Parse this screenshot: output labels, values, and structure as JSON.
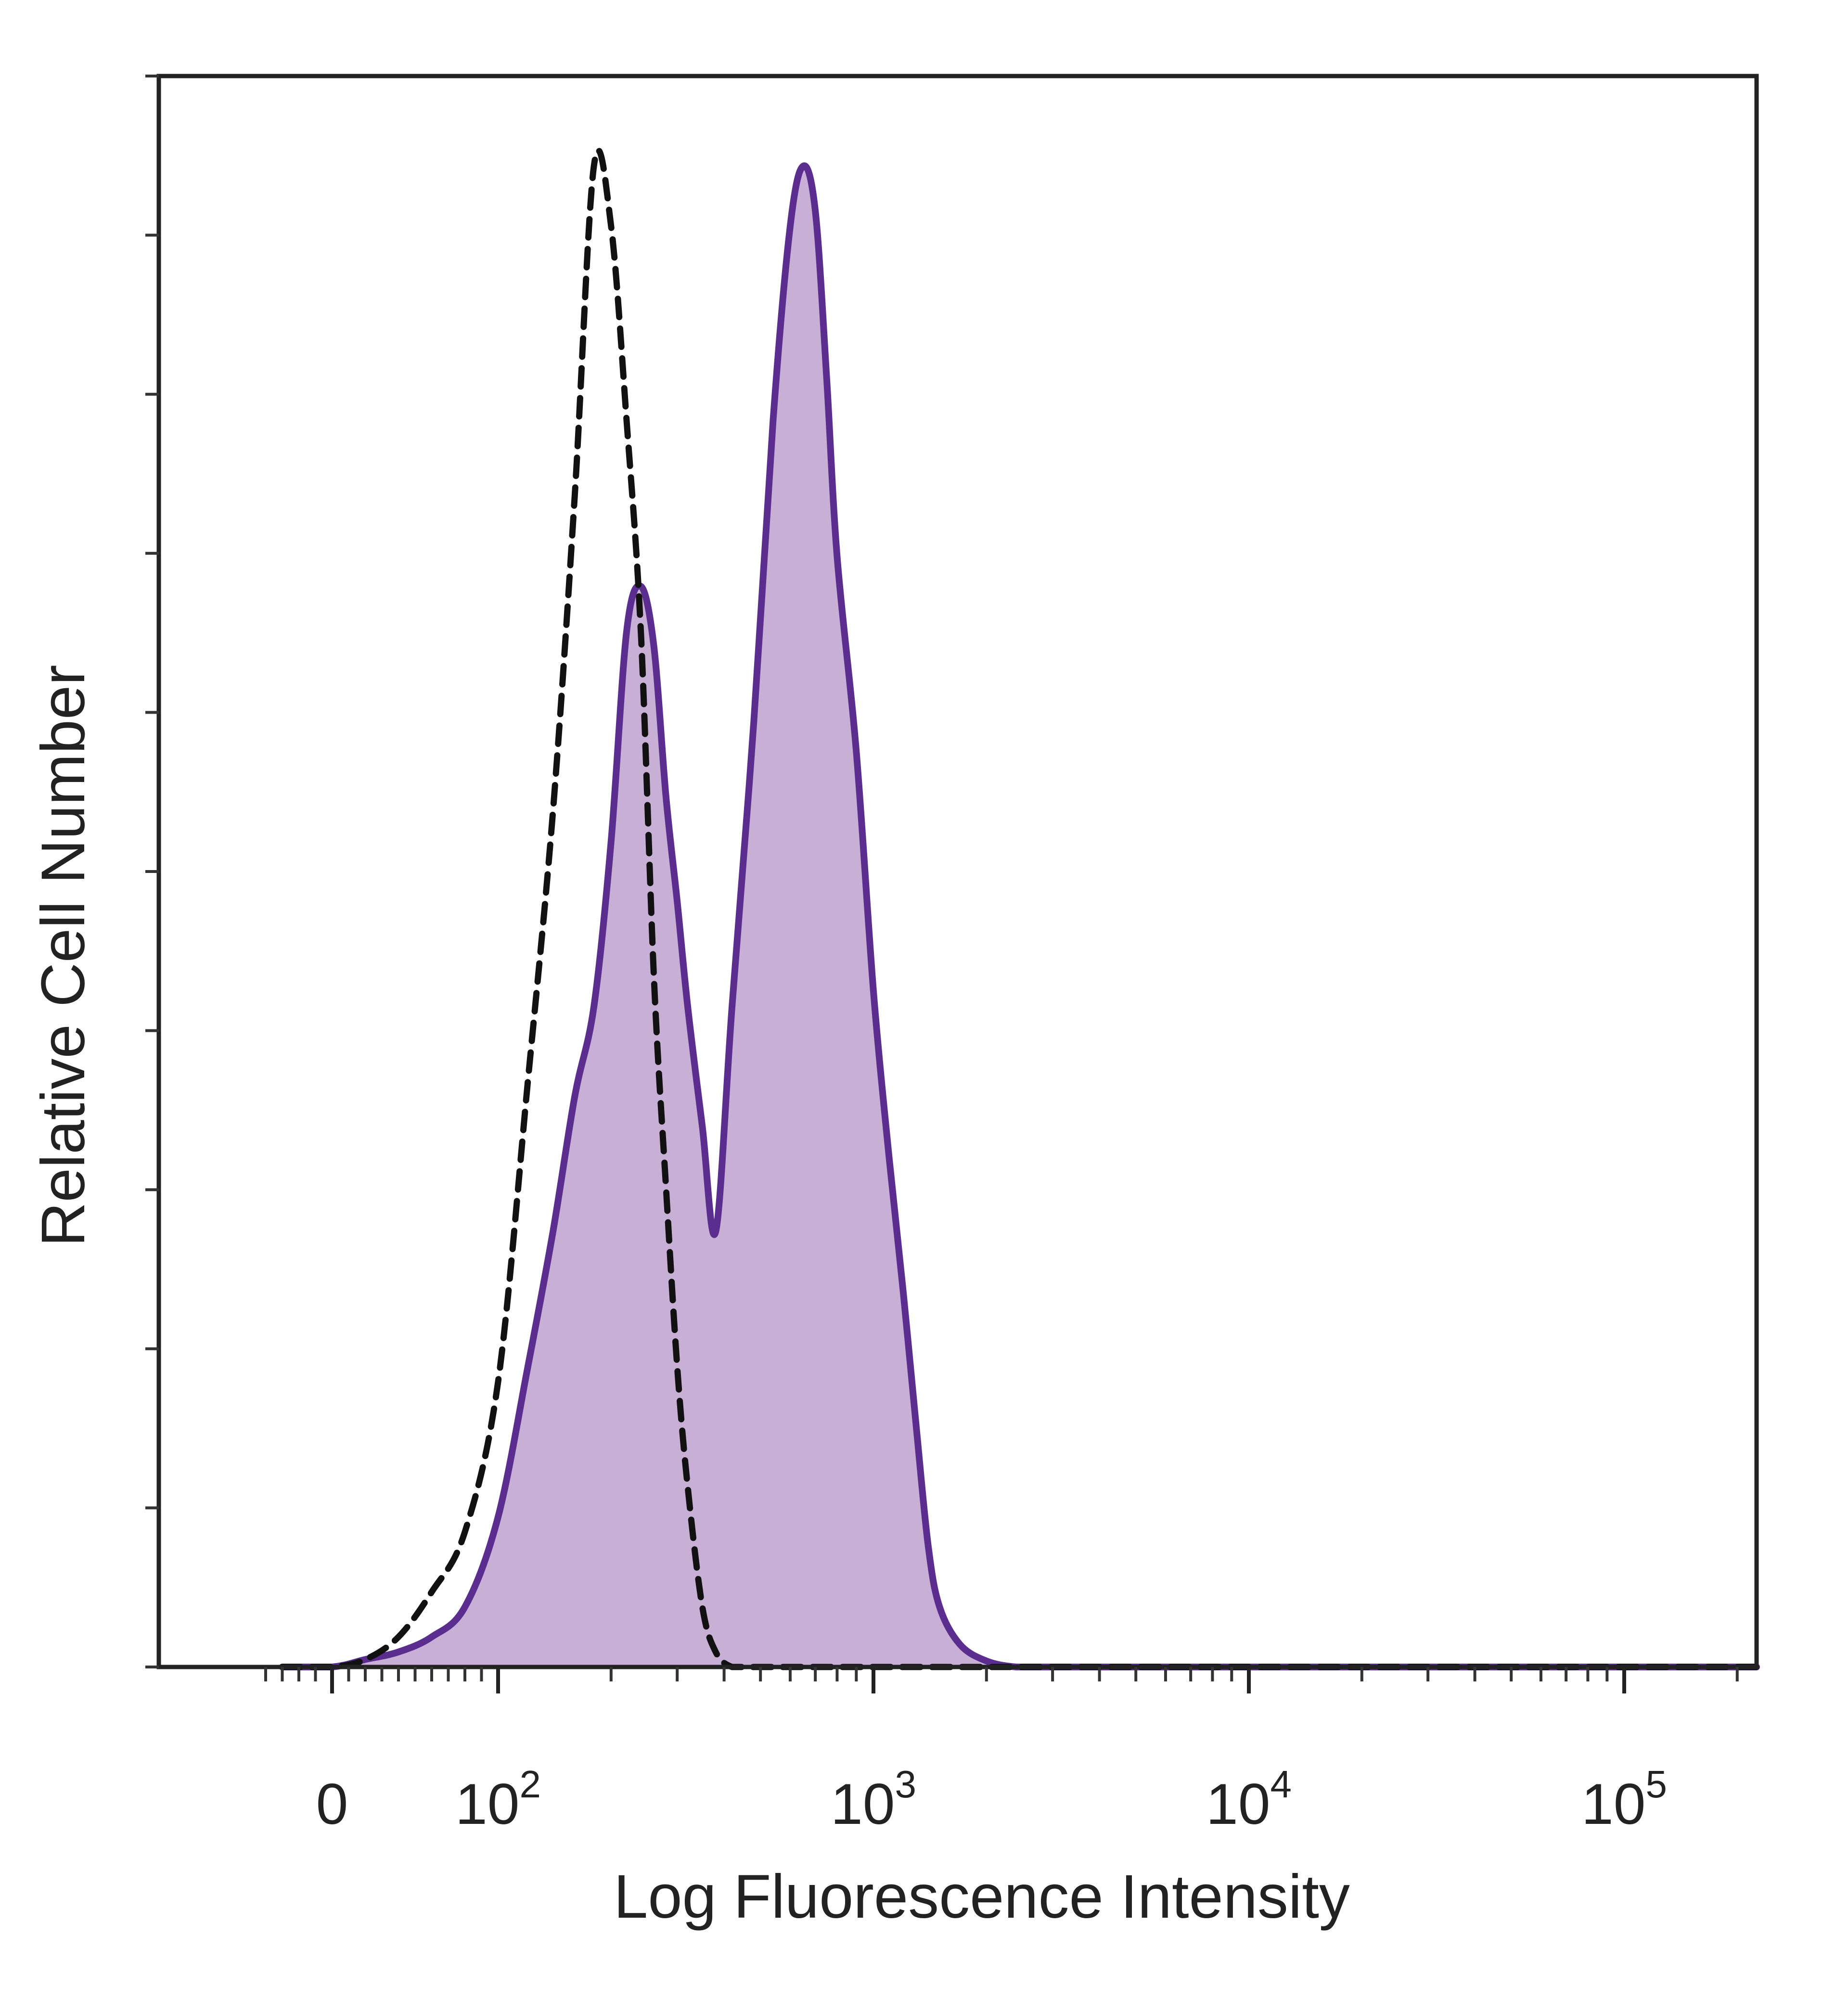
{
  "chart_data": {
    "type": "area",
    "xlabel": "Log Fluorescence Intensity",
    "ylabel": "Relative Cell Number",
    "x_scale": "biexponential (log) with zero",
    "y_scale": "relative, no tick labels",
    "x_ticks": [
      {
        "value": 0,
        "base": "0",
        "exp": ""
      },
      {
        "value": 100,
        "base": "10",
        "exp": "2"
      },
      {
        "value": 1000,
        "base": "10",
        "exp": "3"
      },
      {
        "value": 10000,
        "base": "10",
        "exp": "4"
      },
      {
        "value": 100000,
        "base": "10",
        "exp": "5"
      }
    ],
    "grid": false,
    "legend": "none",
    "colors": {
      "stained_fill": "#c8afd6",
      "stained_line": "#5b2d8e",
      "control_line": "#111111",
      "frame": "#222222"
    },
    "series": [
      {
        "style": "filled solid purple",
        "x": [
          -30,
          0,
          20,
          40,
          60,
          80,
          100,
          120,
          140,
          160,
          180,
          200,
          220,
          240,
          260,
          280,
          300,
          320,
          350,
          380,
          420,
          480,
          540,
          600,
          650,
          700,
          750,
          800,
          900,
          1000,
          1100,
          1200,
          1300,
          1400,
          1500,
          1700,
          2000,
          2400,
          3000,
          4000,
          10000,
          100000
        ],
        "y": [
          0,
          0,
          0.005,
          0.01,
          0.02,
          0.04,
          0.1,
          0.2,
          0.29,
          0.38,
          0.44,
          0.55,
          0.69,
          0.72,
          0.68,
          0.58,
          0.51,
          0.44,
          0.36,
          0.29,
          0.44,
          0.63,
          0.83,
          0.96,
          1.0,
          0.97,
          0.86,
          0.74,
          0.61,
          0.45,
          0.34,
          0.25,
          0.16,
          0.08,
          0.04,
          0.015,
          0.004,
          0,
          0,
          0,
          0,
          0
        ]
      },
      {
        "style": "dashed black outline",
        "x": [
          -30,
          0,
          20,
          40,
          60,
          80,
          100,
          120,
          140,
          160,
          180,
          200,
          220,
          240,
          260,
          280,
          300,
          320,
          350,
          380,
          420,
          480,
          540,
          600,
          1000,
          10000,
          100000
        ],
        "y": [
          0,
          0,
          0.005,
          0.02,
          0.05,
          0.09,
          0.19,
          0.39,
          0.57,
          0.78,
          1.0,
          0.96,
          0.83,
          0.69,
          0.46,
          0.32,
          0.2,
          0.12,
          0.04,
          0.01,
          0,
          0,
          0,
          0,
          0,
          0,
          0
        ]
      }
    ]
  }
}
